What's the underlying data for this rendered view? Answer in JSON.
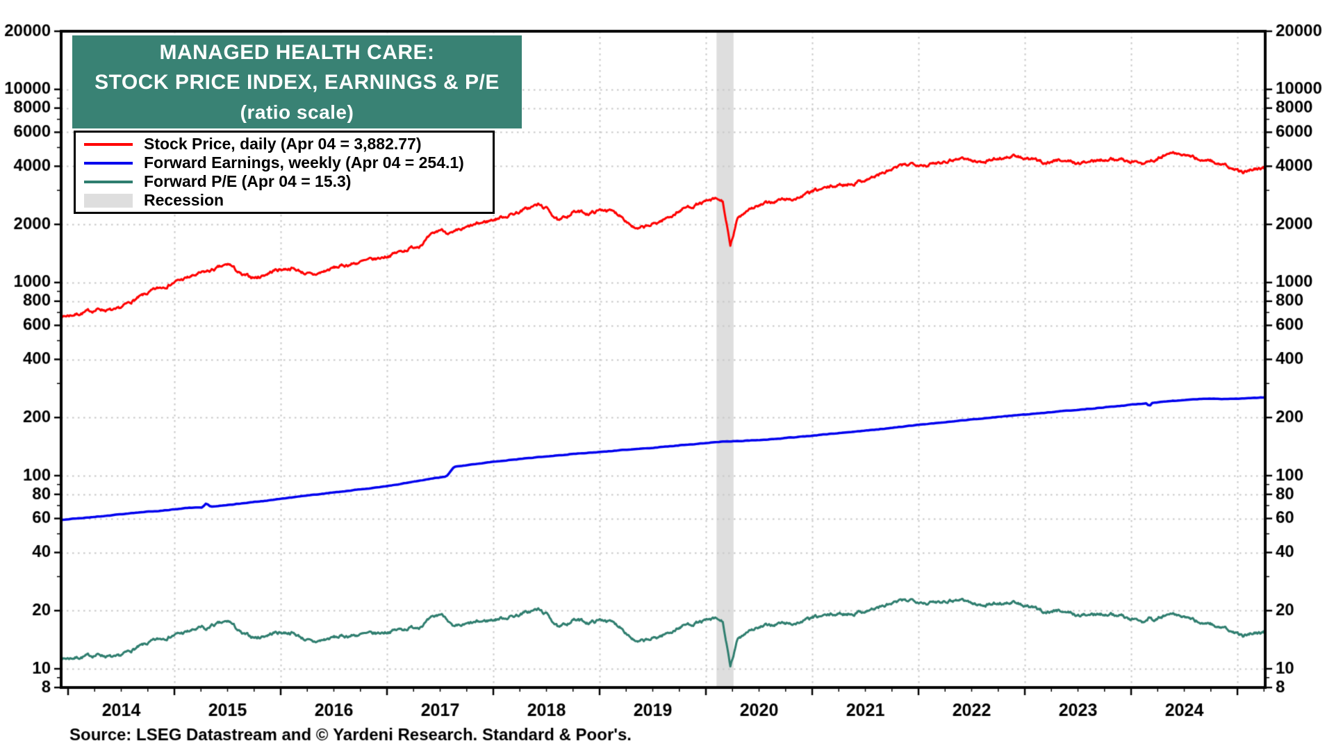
{
  "chart_data": {
    "type": "line",
    "title_lines": [
      "MANAGED HEALTH CARE:",
      "STOCK PRICE INDEX, EARNINGS & P/E",
      "(ratio scale)"
    ],
    "title_bg_color": "#398274",
    "y_axis": {
      "scale": "log",
      "min": 8,
      "max": 20000,
      "labeled_ticks": [
        20000,
        10000,
        8000,
        6000,
        4000,
        2000,
        1000,
        800,
        600,
        400,
        200,
        100,
        80,
        60,
        40,
        20,
        10,
        8
      ],
      "sides": [
        "left",
        "right"
      ]
    },
    "x_axis": {
      "start": 2013.93,
      "end": 2025.26,
      "year_labels": [
        "2014",
        "2015",
        "2016",
        "2017",
        "2018",
        "2019",
        "2020",
        "2021",
        "2022",
        "2023",
        "2024"
      ],
      "gridline_years": [
        2015,
        2016,
        2017,
        2018,
        2019,
        2020,
        2021,
        2022,
        2023,
        2024,
        2025
      ],
      "minor_tick_interval_years": 0.25
    },
    "grid_color": "#c8c8c8",
    "recession": {
      "legend_label": "Recession",
      "color": "#dedede",
      "bands": [
        {
          "start": 2020.1,
          "end": 2020.26
        }
      ]
    },
    "series": [
      {
        "name": "stock-price",
        "legend_label": "Stock Price, daily (Apr 04 = 3,882.77)",
        "cadence": "daily",
        "latest_date": "Apr 04",
        "latest_value": 3882.77,
        "color": "#ff0000",
        "line_width": 3,
        "anchors": [
          [
            2013.93,
            665
          ],
          [
            2014.1,
            690
          ],
          [
            2014.3,
            730
          ],
          [
            2014.45,
            710
          ],
          [
            2014.6,
            800
          ],
          [
            2014.8,
            905
          ],
          [
            2015.0,
            1005
          ],
          [
            2015.2,
            1090
          ],
          [
            2015.4,
            1180
          ],
          [
            2015.52,
            1240
          ],
          [
            2015.64,
            1080
          ],
          [
            2015.78,
            1060
          ],
          [
            2015.95,
            1160
          ],
          [
            2016.1,
            1190
          ],
          [
            2016.3,
            1085
          ],
          [
            2016.5,
            1190
          ],
          [
            2016.7,
            1260
          ],
          [
            2016.9,
            1320
          ],
          [
            2017.1,
            1430
          ],
          [
            2017.3,
            1560
          ],
          [
            2017.5,
            1880
          ],
          [
            2017.62,
            1790
          ],
          [
            2017.8,
            1960
          ],
          [
            2018.0,
            2120
          ],
          [
            2018.2,
            2280
          ],
          [
            2018.42,
            2530
          ],
          [
            2018.52,
            2380
          ],
          [
            2018.62,
            2060
          ],
          [
            2018.75,
            2330
          ],
          [
            2018.9,
            2280
          ],
          [
            2019.05,
            2400
          ],
          [
            2019.2,
            2240
          ],
          [
            2019.35,
            1870
          ],
          [
            2019.5,
            1990
          ],
          [
            2019.65,
            2180
          ],
          [
            2019.8,
            2430
          ],
          [
            2019.95,
            2570
          ],
          [
            2020.1,
            2690
          ],
          [
            2020.16,
            2620
          ],
          [
            2020.23,
            1520
          ],
          [
            2020.3,
            2150
          ],
          [
            2020.4,
            2420
          ],
          [
            2020.55,
            2540
          ],
          [
            2020.7,
            2680
          ],
          [
            2020.85,
            2720
          ],
          [
            2021.0,
            2950
          ],
          [
            2021.2,
            3150
          ],
          [
            2021.4,
            3280
          ],
          [
            2021.6,
            3560
          ],
          [
            2021.8,
            3940
          ],
          [
            2021.95,
            4160
          ],
          [
            2022.1,
            4060
          ],
          [
            2022.25,
            4280
          ],
          [
            2022.42,
            4430
          ],
          [
            2022.55,
            4190
          ],
          [
            2022.7,
            4340
          ],
          [
            2022.88,
            4520
          ],
          [
            2023.05,
            4330
          ],
          [
            2023.2,
            4180
          ],
          [
            2023.35,
            4330
          ],
          [
            2023.5,
            4140
          ],
          [
            2023.65,
            4260
          ],
          [
            2023.8,
            4420
          ],
          [
            2023.95,
            4280
          ],
          [
            2024.1,
            4160
          ],
          [
            2024.25,
            4380
          ],
          [
            2024.38,
            4680
          ],
          [
            2024.5,
            4560
          ],
          [
            2024.62,
            4380
          ],
          [
            2024.75,
            4280
          ],
          [
            2024.85,
            4060
          ],
          [
            2024.95,
            3880
          ],
          [
            2025.05,
            3700
          ],
          [
            2025.15,
            3930
          ],
          [
            2025.26,
            3882.77
          ]
        ]
      },
      {
        "name": "forward-earnings",
        "legend_label": "Forward Earnings, weekly (Apr 04 = 254.1)",
        "cadence": "weekly",
        "latest_date": "Apr 04",
        "latest_value": 254.1,
        "color": "#0000ee",
        "line_width": 3.5,
        "anchors": [
          [
            2013.93,
            59
          ],
          [
            2014.3,
            61.5
          ],
          [
            2014.6,
            64
          ],
          [
            2014.9,
            66
          ],
          [
            2015.1,
            68
          ],
          [
            2015.26,
            68.5
          ],
          [
            2015.3,
            72
          ],
          [
            2015.34,
            69
          ],
          [
            2015.55,
            71
          ],
          [
            2015.8,
            73.5
          ],
          [
            2016.05,
            76.5
          ],
          [
            2016.3,
            79.5
          ],
          [
            2016.55,
            82.5
          ],
          [
            2016.8,
            85.5
          ],
          [
            2017.05,
            89
          ],
          [
            2017.25,
            93
          ],
          [
            2017.45,
            97
          ],
          [
            2017.56,
            99
          ],
          [
            2017.63,
            111
          ],
          [
            2017.82,
            114.5
          ],
          [
            2018.0,
            118
          ],
          [
            2018.25,
            122
          ],
          [
            2018.5,
            126
          ],
          [
            2018.75,
            129.5
          ],
          [
            2019.0,
            132.5
          ],
          [
            2019.25,
            136
          ],
          [
            2019.5,
            139.5
          ],
          [
            2019.75,
            143.5
          ],
          [
            2020.0,
            147.5
          ],
          [
            2020.15,
            150
          ],
          [
            2020.35,
            151.5
          ],
          [
            2020.55,
            153.5
          ],
          [
            2020.8,
            157.5
          ],
          [
            2021.05,
            162
          ],
          [
            2021.3,
            167
          ],
          [
            2021.55,
            172
          ],
          [
            2021.8,
            178
          ],
          [
            2022.05,
            184.5
          ],
          [
            2022.3,
            190.5
          ],
          [
            2022.55,
            196.5
          ],
          [
            2022.8,
            202.5
          ],
          [
            2023.05,
            208.5
          ],
          [
            2023.3,
            214.5
          ],
          [
            2023.55,
            220.5
          ],
          [
            2023.8,
            227
          ],
          [
            2024.0,
            233
          ],
          [
            2024.15,
            237
          ],
          [
            2024.17,
            228
          ],
          [
            2024.2,
            238.5
          ],
          [
            2024.4,
            244
          ],
          [
            2024.6,
            248.5
          ],
          [
            2024.75,
            250.5
          ],
          [
            2024.9,
            249.5
          ],
          [
            2025.05,
            251
          ],
          [
            2025.26,
            254.1
          ]
        ]
      },
      {
        "name": "forward-pe",
        "legend_label": "Forward P/E (Apr 04 = 15.3)",
        "cadence": "daily",
        "latest_date": "Apr 04",
        "latest_value": 15.3,
        "color": "#2f7e6f",
        "line_width": 3,
        "derived": "stock-price / forward-earnings",
        "anchors": []
      }
    ],
    "source": "Source: LSEG Datastream and © Yardeni Research. Standard & Poor's."
  }
}
